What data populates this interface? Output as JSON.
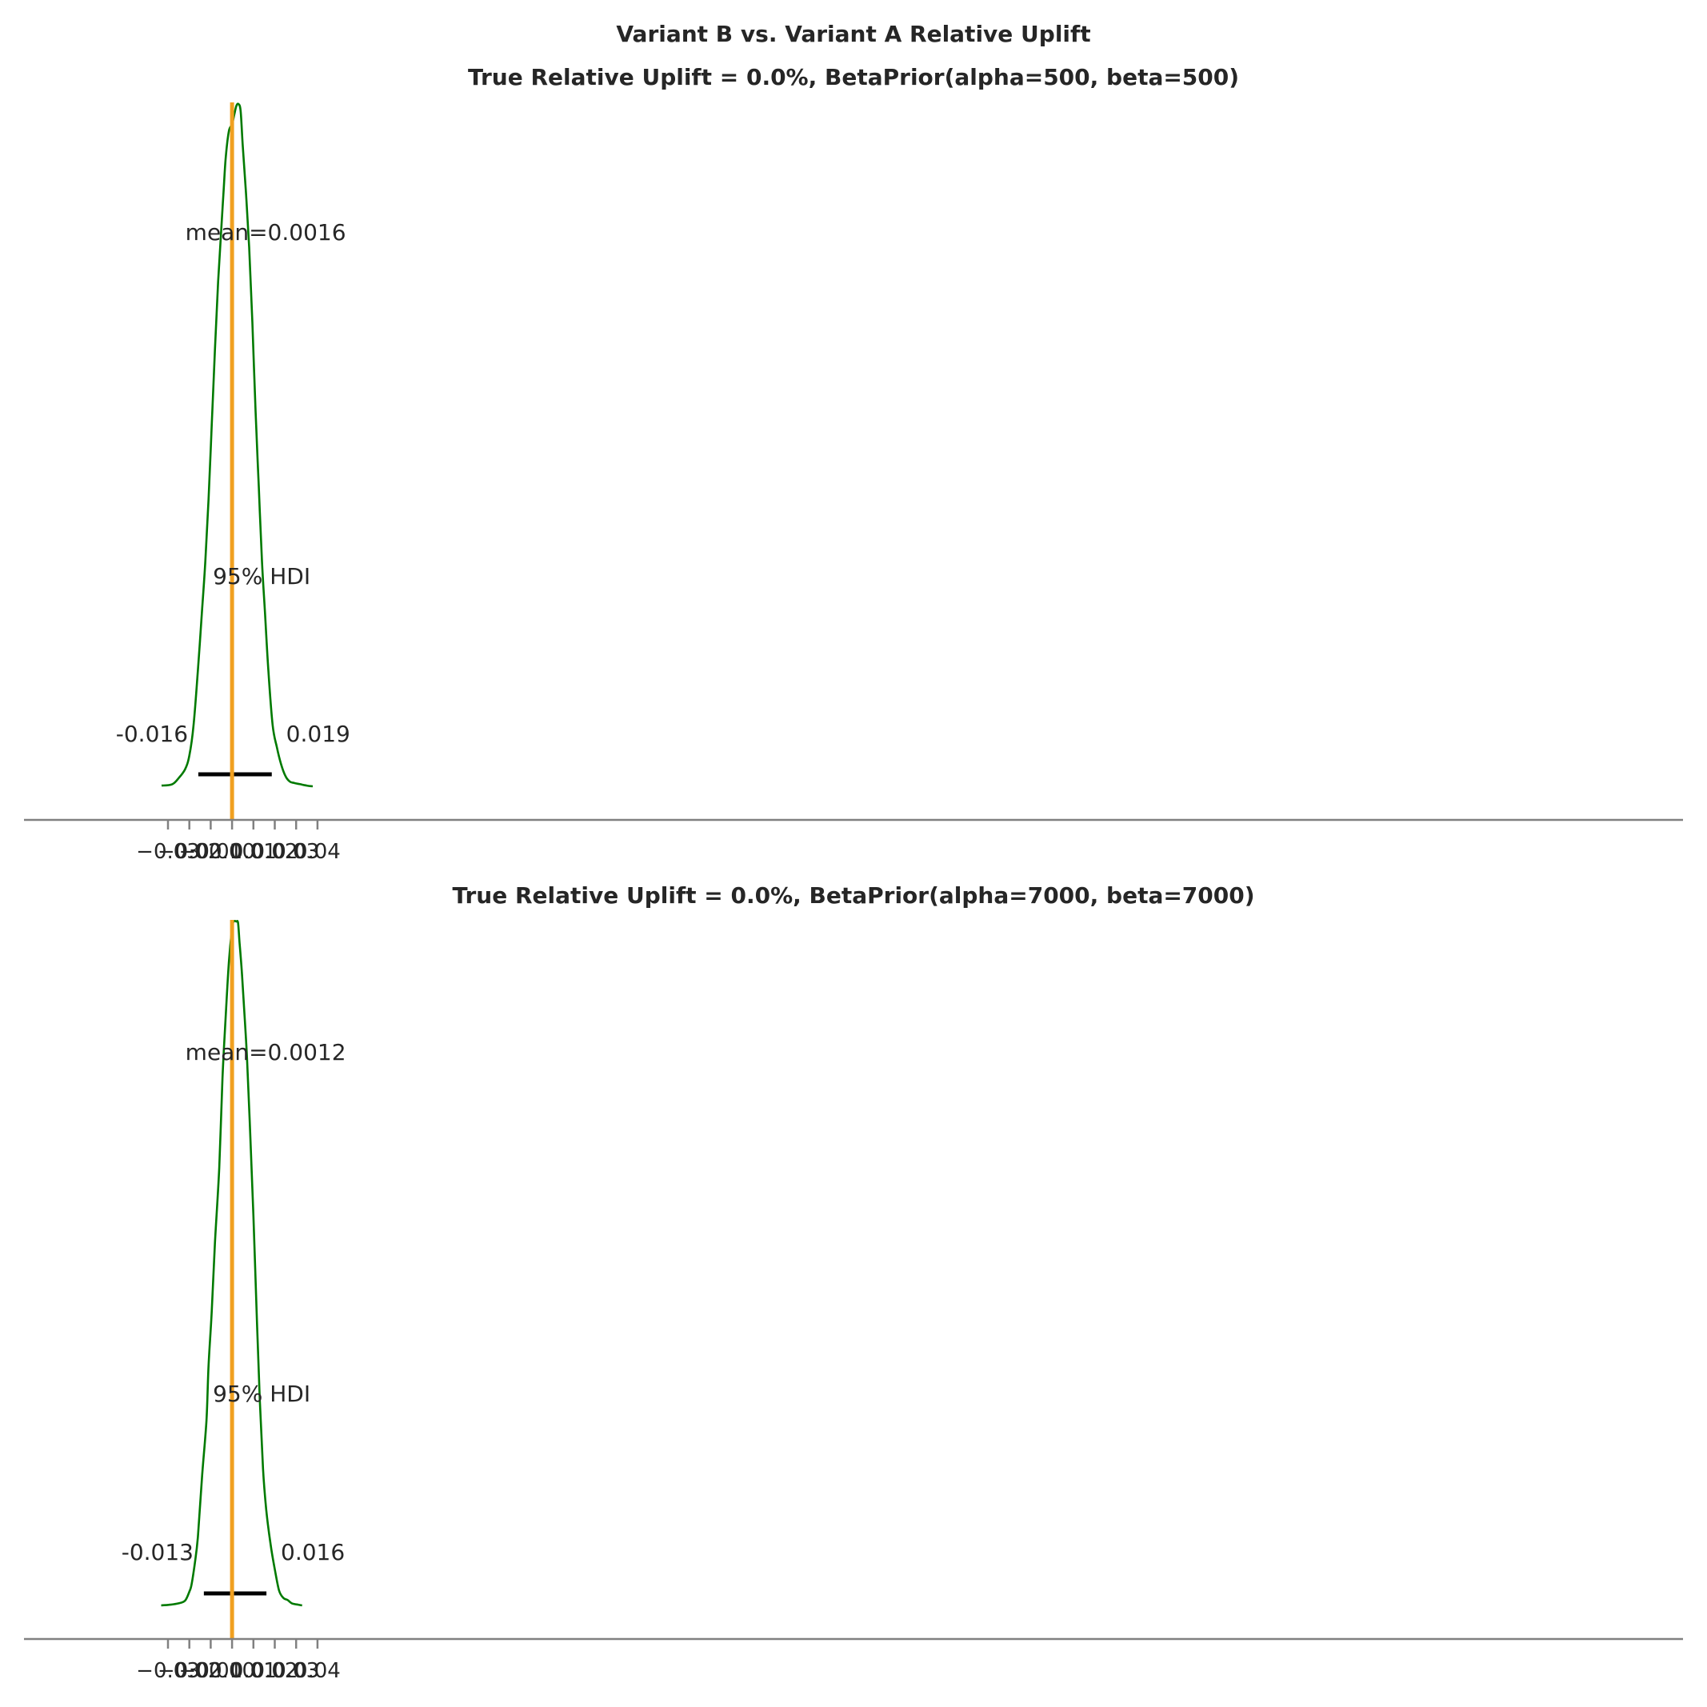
{
  "figure": {
    "suptitle": "Variant B vs. Variant A Relative Uplift"
  },
  "colors": {
    "density": "#007a00",
    "reference": "#f0a020",
    "hdi": "#000000",
    "axis": "#808080",
    "text": "#262626"
  },
  "chart_data": [
    {
      "type": "line",
      "title": "True Relative Uplift = 0.0%, BetaPrior(alpha=500, beta=500)",
      "xlabel": "",
      "ylabel": "",
      "xlim": [
        -0.0375,
        0.0405
      ],
      "xticks": [
        -0.03,
        -0.02,
        -0.01,
        0.0,
        0.01,
        0.02,
        0.03,
        0.04
      ],
      "xtick_labels": [
        "−0.03",
        "−0.02",
        "−0.01",
        "0.00",
        "0.01",
        "0.02",
        "0.03",
        "0.04"
      ],
      "grid": false,
      "reference_line_x": 0.0,
      "mean_label": "mean=0.0016",
      "hdi_label": "95% HDI",
      "hdi": {
        "low": -0.0158,
        "high": 0.0186,
        "low_label": "-0.016",
        "high_label": "0.019"
      },
      "density": {
        "x": [
          -0.033,
          -0.028,
          -0.025,
          -0.022,
          -0.02,
          -0.018,
          -0.016,
          -0.014,
          -0.0125,
          -0.011,
          -0.0095,
          -0.008,
          -0.0065,
          -0.005,
          -0.004,
          -0.003,
          -0.0015,
          0.0,
          0.001,
          0.002,
          0.003,
          0.004,
          0.005,
          0.0065,
          0.008,
          0.0095,
          0.011,
          0.0125,
          0.014,
          0.0155,
          0.017,
          0.019,
          0.021,
          0.023,
          0.025,
          0.027,
          0.029,
          0.032,
          0.035,
          0.0378
        ],
        "y": [
          0.001,
          0.003,
          0.012,
          0.025,
          0.045,
          0.09,
          0.17,
          0.26,
          0.33,
          0.42,
          0.53,
          0.64,
          0.74,
          0.82,
          0.87,
          0.92,
          0.96,
          0.97,
          0.984,
          0.997,
          1.0,
          0.99,
          0.94,
          0.87,
          0.79,
          0.68,
          0.55,
          0.44,
          0.33,
          0.25,
          0.17,
          0.09,
          0.057,
          0.032,
          0.015,
          0.007,
          0.005,
          0.003,
          0.001,
          0.0
        ]
      }
    },
    {
      "type": "line",
      "title": "True Relative Uplift = 0.0%, BetaPrior(alpha=7000, beta=7000)",
      "xlabel": "",
      "ylabel": "",
      "xlim": [
        -0.0375,
        0.0405
      ],
      "xticks": [
        -0.03,
        -0.02,
        -0.01,
        0.0,
        0.01,
        0.02,
        0.03,
        0.04
      ],
      "xtick_labels": [
        "−0.03",
        "−0.02",
        "−0.01",
        "0.00",
        "0.01",
        "0.02",
        "0.03",
        "0.04"
      ],
      "grid": false,
      "reference_line_x": 0.0,
      "mean_label": "mean=0.0012",
      "hdi_label": "95% HDI",
      "hdi": {
        "low": -0.0132,
        "high": 0.0161,
        "low_label": "-0.013",
        "high_label": "0.016"
      },
      "density": {
        "x": [
          -0.0332,
          -0.029,
          -0.025,
          -0.022,
          -0.02,
          -0.019,
          -0.0175,
          -0.016,
          -0.014,
          -0.012,
          -0.011,
          -0.0095,
          -0.008,
          -0.006,
          -0.0045,
          -0.003,
          -0.0015,
          0.0,
          0.0008,
          0.002,
          0.0028,
          0.0035,
          0.0045,
          0.0055,
          0.007,
          0.0085,
          0.01,
          0.0115,
          0.013,
          0.0145,
          0.016,
          0.018,
          0.02,
          0.022,
          0.024,
          0.026,
          0.028,
          0.031,
          0.0328
        ],
        "y": [
          0.0,
          0.001,
          0.003,
          0.007,
          0.02,
          0.03,
          0.06,
          0.1,
          0.19,
          0.27,
          0.35,
          0.43,
          0.53,
          0.64,
          0.77,
          0.86,
          0.94,
          0.99,
          1.0,
          1.0,
          0.998,
          0.97,
          0.93,
          0.88,
          0.8,
          0.69,
          0.57,
          0.43,
          0.3,
          0.2,
          0.14,
          0.09,
          0.053,
          0.022,
          0.011,
          0.008,
          0.003,
          0.001,
          0.0
        ]
      }
    }
  ]
}
